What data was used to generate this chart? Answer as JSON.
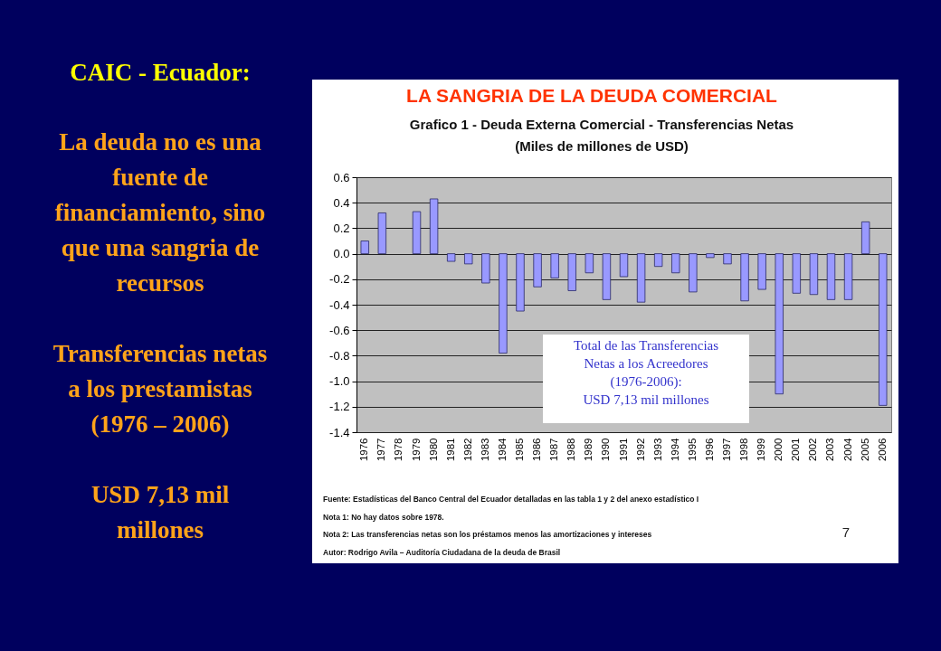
{
  "chart_data": {
    "type": "bar",
    "title": "LA SANGRIA DE LA DEUDA COMERCIAL",
    "subtitle": "Grafico 1 - Deuda Externa Comercial - Transferencias Netas\n(Miles de millones de USD)",
    "categories": [
      "1976",
      "1977",
      "1978",
      "1979",
      "1980",
      "1981",
      "1982",
      "1983",
      "1984",
      "1985",
      "1986",
      "1987",
      "1988",
      "1989",
      "1990",
      "1991",
      "1992",
      "1993",
      "1994",
      "1995",
      "1996",
      "1997",
      "1998",
      "1999",
      "2000",
      "2001",
      "2002",
      "2003",
      "2004",
      "2005",
      "2006"
    ],
    "values": [
      0.1,
      0.32,
      null,
      0.33,
      0.43,
      -0.06,
      -0.08,
      -0.23,
      -0.78,
      -0.45,
      -0.26,
      -0.19,
      -0.29,
      -0.15,
      -0.36,
      -0.18,
      -0.38,
      -0.1,
      -0.15,
      -0.3,
      -0.03,
      -0.08,
      -0.37,
      -0.28,
      -1.1,
      -0.31,
      -0.32,
      -0.36,
      -0.36,
      0.25,
      -1.19
    ],
    "color": "#9999ff",
    "ylim": [
      -1.4,
      0.6
    ],
    "yticks": [
      0.6,
      0.4,
      0.2,
      {
        "value": 0,
        "label": "0.0"
      },
      -0.2,
      -0.4,
      -0.6,
      -0.8,
      {
        "value": -1,
        "label": "-1.0"
      },
      -1.2,
      -1.4
    ],
    "grid": "y",
    "annotations": [
      "CAIC - Ecuador:",
      "La deuda no es una\nfuente de\nfinanciamiento, sino\nque una sangria de\nrecursos",
      "Transferencias netas\na los prestamistas\n(1976 – 2006)",
      "USD 7,13 mil\nmillones",
      "Total de las Transferencias\nNetas a los Acreedores\n(1976-2006):\nUSD 7,13 mil millones",
      "Fuente: Estadísticas del Banco Central del Ecuador detalladas en las tabla 1 y 2 del anexo estadístico I",
      "Nota 1: No hay datos sobre 1978.",
      "Nota 2: Las transferencias netas son los préstamos menos las amortizaciones y intereses",
      "Autor: Rodrigo Avila – Auditoría Ciudadana de la deuda de Brasil",
      "7"
    ]
  }
}
